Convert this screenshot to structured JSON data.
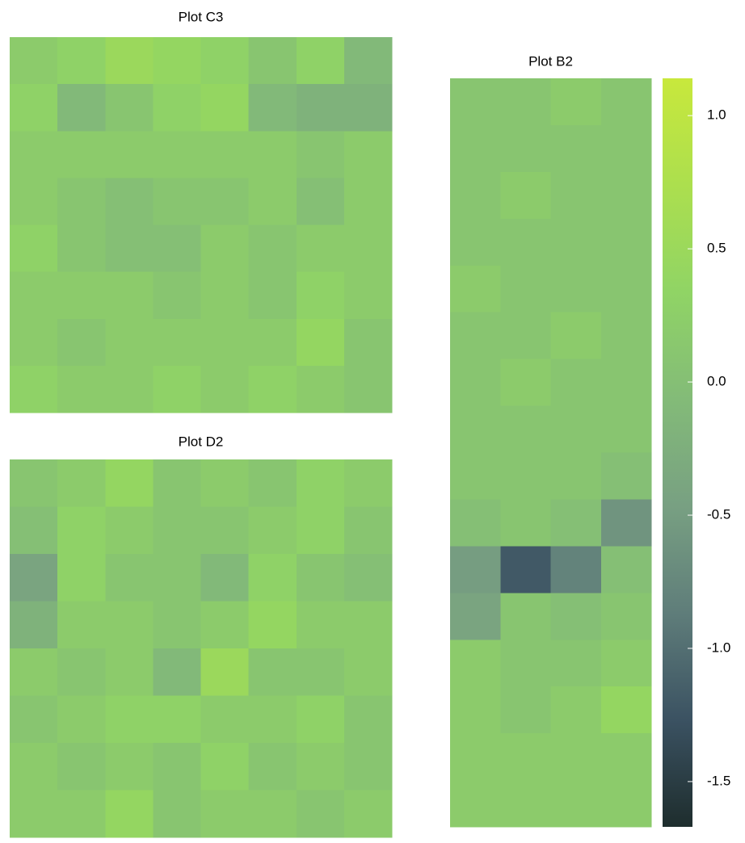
{
  "chart_data": [
    {
      "type": "heatmap",
      "title": "Plot C3",
      "z": [
        [
          0.2,
          0.3,
          0.5,
          0.4,
          0.3,
          0.1,
          0.3,
          -0.1
        ],
        [
          0.3,
          -0.1,
          0.1,
          0.3,
          0.4,
          -0.1,
          -0.2,
          -0.2
        ],
        [
          0.2,
          0.2,
          0.2,
          0.2,
          0.2,
          0.2,
          0.1,
          0.2
        ],
        [
          0.2,
          0.1,
          0.0,
          0.1,
          0.1,
          0.2,
          0.0,
          0.2
        ],
        [
          0.3,
          0.1,
          0.0,
          0.0,
          0.2,
          0.1,
          0.2,
          0.2
        ],
        [
          0.2,
          0.2,
          0.2,
          0.1,
          0.2,
          0.1,
          0.3,
          0.2
        ],
        [
          0.2,
          0.1,
          0.2,
          0.2,
          0.2,
          0.2,
          0.4,
          0.1
        ],
        [
          0.3,
          0.2,
          0.2,
          0.3,
          0.2,
          0.3,
          0.2,
          0.1
        ]
      ]
    },
    {
      "type": "heatmap",
      "title": "Plot D2",
      "z": [
        [
          0.1,
          0.2,
          0.4,
          0.1,
          0.2,
          0.1,
          0.3,
          0.2
        ],
        [
          0.0,
          0.3,
          0.2,
          0.1,
          0.1,
          0.2,
          0.3,
          0.1
        ],
        [
          -0.4,
          0.3,
          0.1,
          0.1,
          -0.1,
          0.3,
          0.1,
          0.0
        ],
        [
          -0.2,
          0.2,
          0.2,
          0.1,
          0.2,
          0.4,
          0.2,
          0.2
        ],
        [
          0.2,
          0.1,
          0.2,
          -0.1,
          0.5,
          0.1,
          0.1,
          0.2
        ],
        [
          0.1,
          0.2,
          0.3,
          0.3,
          0.2,
          0.2,
          0.3,
          0.1
        ],
        [
          0.2,
          0.1,
          0.2,
          0.1,
          0.3,
          0.1,
          0.2,
          0.1
        ],
        [
          0.2,
          0.2,
          0.4,
          0.1,
          0.2,
          0.2,
          0.1,
          0.2
        ]
      ]
    },
    {
      "type": "heatmap",
      "title": "Plot B2",
      "z": [
        [
          0.1,
          0.1,
          0.2,
          0.1
        ],
        [
          0.1,
          0.1,
          0.1,
          0.1
        ],
        [
          0.1,
          0.2,
          0.1,
          0.1
        ],
        [
          0.1,
          0.1,
          0.1,
          0.1
        ],
        [
          0.2,
          0.1,
          0.1,
          0.1
        ],
        [
          0.1,
          0.1,
          0.2,
          0.1
        ],
        [
          0.1,
          0.2,
          0.1,
          0.1
        ],
        [
          0.1,
          0.1,
          0.1,
          0.1
        ],
        [
          0.1,
          0.1,
          0.1,
          0.0
        ],
        [
          0.0,
          0.1,
          0.0,
          -0.6
        ],
        [
          -0.5,
          -1.2,
          -0.8,
          0.0
        ],
        [
          -0.4,
          0.1,
          0.0,
          0.1
        ],
        [
          0.2,
          0.1,
          0.1,
          0.2
        ],
        [
          0.2,
          0.1,
          0.2,
          0.4
        ],
        [
          0.2,
          0.2,
          0.2,
          0.2
        ],
        [
          0.2,
          0.2,
          0.2,
          0.2
        ]
      ]
    }
  ],
  "colorbar": {
    "zlim": [
      -1.67,
      1.14
    ],
    "ticks": [
      {
        "value": 1,
        "label": "1.0"
      },
      0.5,
      {
        "value": 0,
        "label": "0.0"
      },
      -0.5,
      {
        "value": -1,
        "label": "-1.0"
      },
      -1.5
    ],
    "colors": [
      "#1e2d2d",
      "#3b5262",
      "#5f7d7a",
      "#78a082",
      "#83bb78",
      "#90d465",
      "#acdf4e",
      "#c8e83c"
    ]
  }
}
